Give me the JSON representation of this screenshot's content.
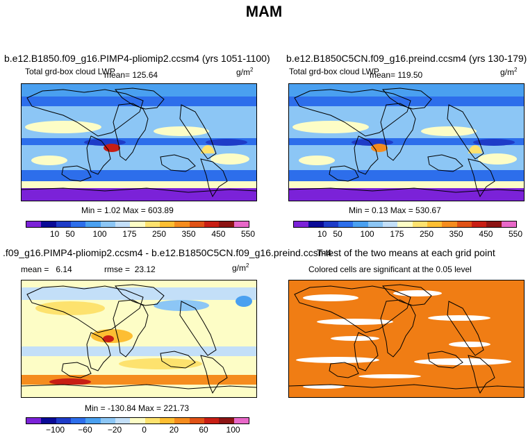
{
  "figure": {
    "title": "MAM"
  },
  "colors": {
    "abs_scale": [
      "#7b22d8",
      "#0a0a96",
      "#1e3cc8",
      "#2d6eeb",
      "#4aa0f0",
      "#8cc6f5",
      "#c3dff8",
      "#fdfdc6",
      "#fde26e",
      "#fdbe32",
      "#f58c1e",
      "#e05216",
      "#c81e14",
      "#8c1414",
      "#e868c8"
    ],
    "diff_scale": [
      "#7b22d8",
      "#0a0a96",
      "#1e3cc8",
      "#2d6eeb",
      "#4aa0f0",
      "#8cc6f5",
      "#c3dff8",
      "#fdfdc6",
      "#fde26e",
      "#fdbe32",
      "#f58c1e",
      "#e05216",
      "#c81e14",
      "#8c1414",
      "#e868c8"
    ],
    "ttest": "#f07d14"
  },
  "panels": {
    "p1": {
      "title": "b.e12.B1850.f09_g16.PIMP4-pliomip2.ccsm4 (yrs 1051-1100)",
      "variable": "Total grd-box cloud LWP",
      "mean_label": "mean=",
      "mean": "125.64",
      "units": "g/m",
      "units_sup": "2",
      "minmax": "Min =    1.02 Max = 603.89"
    },
    "p2": {
      "title": "b.e12.B1850C5CN.f09_g16.preind.ccsm4 (yrs 130-179)",
      "variable": "Total grd-box cloud LWP",
      "mean_label": "mean=",
      "mean": "119.50",
      "units": "g/m",
      "units_sup": "2",
      "minmax": "Min =    0.13 Max = 530.67"
    },
    "p3": {
      "title": ".f09_g16.PIMP4-pliomip2.ccsm4 - b.e12.B1850C5CN.f09_g16.preind.ccsm4",
      "mean_label": "mean =",
      "mean": "6.14",
      "rmse_label": "rmse =",
      "rmse": "23.12",
      "units": "g/m",
      "units_sup": "2",
      "minmax": "Min = -130.84 Max = 221.73"
    },
    "p4": {
      "title": "T-test of the two means at each grid point",
      "subtitle": "Colored cells are significant at the 0.05 level"
    }
  },
  "chart_data": [
    {
      "type": "heatmap",
      "title": "b.e12.B1850.f09_g16.PIMP4-pliomip2.ccsm4 (yrs 1051-1100)",
      "subtitle": "Total grd-box cloud LWP",
      "mean": 125.64,
      "min": 1.02,
      "max": 603.89,
      "units": "g/m2",
      "colorbar_ticks": [
        10,
        50,
        100,
        175,
        250,
        350,
        450,
        550
      ],
      "colorbar_labels": [
        "10",
        "50",
        "100",
        "175",
        "250",
        "350",
        "450",
        "550"
      ]
    },
    {
      "type": "heatmap",
      "title": "b.e12.B1850C5CN.f09_g16.preind.ccsm4 (yrs 130-179)",
      "subtitle": "Total grd-box cloud LWP",
      "mean": 119.5,
      "min": 0.13,
      "max": 530.67,
      "units": "g/m2",
      "colorbar_ticks": [
        10,
        50,
        100,
        175,
        250,
        350,
        450,
        550
      ],
      "colorbar_labels": [
        "10",
        "50",
        "100",
        "175",
        "250",
        "350",
        "450",
        "550"
      ]
    },
    {
      "type": "heatmap",
      "title": ".f09_g16.PIMP4-pliomip2.ccsm4 - b.e12.B1850C5CN.f09_g16.preind.ccsm4",
      "mean": 6.14,
      "rmse": 23.12,
      "min": -130.84,
      "max": 221.73,
      "units": "g/m2",
      "colorbar_ticks": [
        -100,
        -60,
        -20,
        0,
        20,
        60,
        100
      ],
      "colorbar_labels": [
        "−100",
        "−60",
        "−20",
        "0",
        "20",
        "60",
        "100"
      ]
    },
    {
      "type": "heatmap",
      "title": "T-test of the two means at each grid point",
      "subtitle": "Colored cells are significant at the 0.05 level",
      "significance_level": 0.05
    }
  ]
}
